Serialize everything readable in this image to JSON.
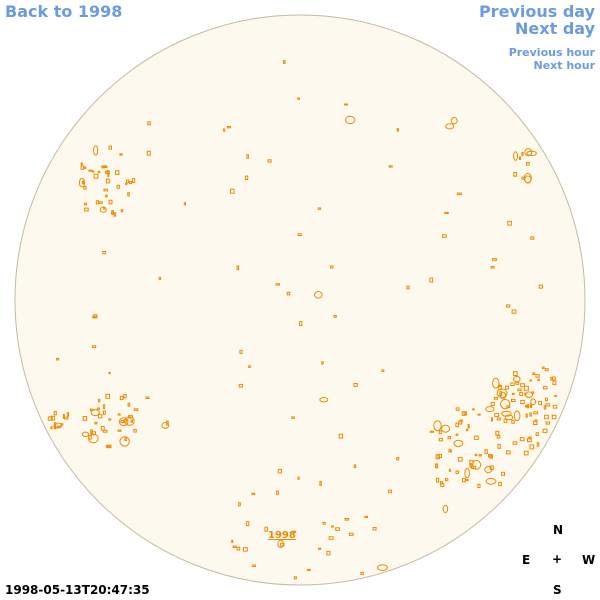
{
  "navigation": {
    "back_label": "Back to 1998",
    "previous_day_label": "Previous day",
    "next_day_label": "Next day",
    "previous_hour_label": "Previous hour",
    "next_hour_label": "Next hour"
  },
  "sun_disk": {
    "year_label": "1998",
    "disk_fill": "#fef9ee",
    "disk_stroke": "#c8b9a0",
    "region_color": "#ee8a00"
  },
  "compass": {
    "north": "N",
    "east": "E",
    "center": "+",
    "west": "W",
    "south": "S"
  },
  "timestamp": "1998-05-13T20:47:35",
  "colors": {
    "link": "#6b9be0",
    "region": "#ee8a00"
  }
}
